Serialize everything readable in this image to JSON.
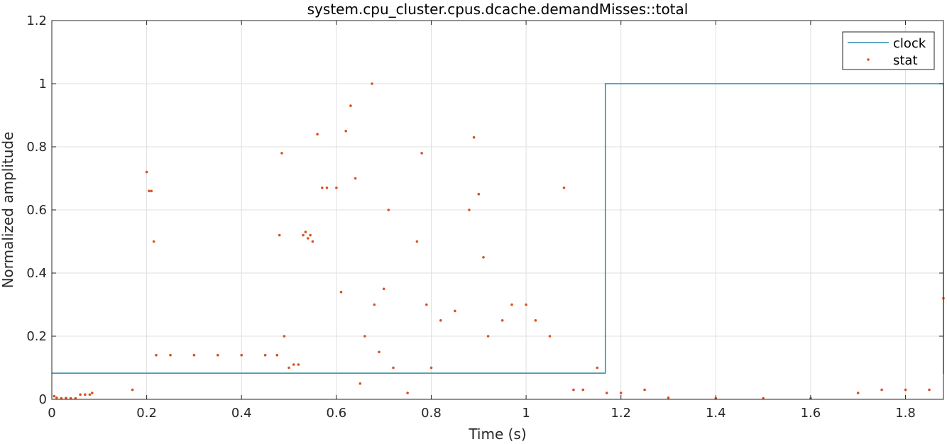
{
  "chart_data": {
    "type": "scatter",
    "title": "system.cpu_cluster.cpus.dcache.demandMisses::total",
    "xlabel": "Time (s)",
    "ylabel": "Normalized amplitude",
    "xlim": [
      0,
      1.88
    ],
    "ylim": [
      0,
      1.2
    ],
    "xticks": [
      0,
      0.2,
      0.4,
      0.6,
      0.8,
      1,
      1.2,
      1.4,
      1.6,
      1.8
    ],
    "xtick_labels": [
      "0",
      "0.2",
      "0.4",
      "0.6",
      "0.8",
      "1",
      "1.2",
      "1.4",
      "1.6",
      "1.8"
    ],
    "yticks": [
      0,
      0.2,
      0.4,
      0.6,
      0.8,
      1,
      1.2
    ],
    "ytick_labels": [
      "0",
      "0.2",
      "0.4",
      "0.6",
      "0.8",
      "1",
      "1.2"
    ],
    "grid": true,
    "legend_position": "top-right",
    "series": [
      {
        "name": "clock",
        "style": "line",
        "color": "#2c8aa8",
        "x": [
          0,
          1.167,
          1.167,
          1.88,
          1.88
        ],
        "y": [
          0.083,
          0.083,
          1.0,
          1.0,
          0.08
        ]
      },
      {
        "name": "stat",
        "style": "markers",
        "color": "#d95319",
        "x": [
          0.005,
          0.01,
          0.02,
          0.03,
          0.04,
          0.05,
          0.06,
          0.07,
          0.08,
          0.085,
          0.17,
          0.2,
          0.205,
          0.21,
          0.215,
          0.22,
          0.25,
          0.3,
          0.35,
          0.4,
          0.45,
          0.475,
          0.48,
          0.485,
          0.49,
          0.5,
          0.51,
          0.52,
          0.53,
          0.535,
          0.54,
          0.545,
          0.55,
          0.56,
          0.57,
          0.58,
          0.6,
          0.61,
          0.62,
          0.63,
          0.64,
          0.65,
          0.66,
          0.675,
          0.68,
          0.69,
          0.7,
          0.71,
          0.72,
          0.75,
          0.77,
          0.78,
          0.79,
          0.8,
          0.82,
          0.85,
          0.88,
          0.89,
          0.9,
          0.91,
          0.92,
          0.95,
          0.97,
          1.0,
          1.02,
          1.05,
          1.08,
          1.1,
          1.12,
          1.15,
          1.17,
          1.2,
          1.25,
          1.3,
          1.4,
          1.5,
          1.6,
          1.7,
          1.75,
          1.8,
          1.85,
          1.88
        ],
        "y": [
          0.01,
          0.005,
          0.003,
          0.004,
          0.003,
          0.003,
          0.015,
          0.015,
          0.015,
          0.02,
          0.03,
          0.72,
          0.66,
          0.66,
          0.5,
          0.14,
          0.14,
          0.14,
          0.14,
          0.14,
          0.14,
          0.14,
          0.52,
          0.78,
          0.2,
          0.1,
          0.11,
          0.11,
          0.52,
          0.53,
          0.51,
          0.52,
          0.5,
          0.84,
          0.67,
          0.67,
          0.67,
          0.34,
          0.85,
          0.93,
          0.7,
          0.05,
          0.2,
          1.0,
          0.3,
          0.15,
          0.35,
          0.6,
          0.1,
          0.02,
          0.5,
          0.78,
          0.3,
          0.1,
          0.25,
          0.28,
          0.6,
          0.83,
          0.65,
          0.45,
          0.2,
          0.25,
          0.3,
          0.3,
          0.25,
          0.2,
          0.67,
          0.03,
          0.03,
          0.1,
          0.02,
          0.02,
          0.03,
          0.005,
          0.003,
          0.003,
          0.003,
          0.02,
          0.03,
          0.03,
          0.03,
          0.32
        ]
      }
    ]
  }
}
